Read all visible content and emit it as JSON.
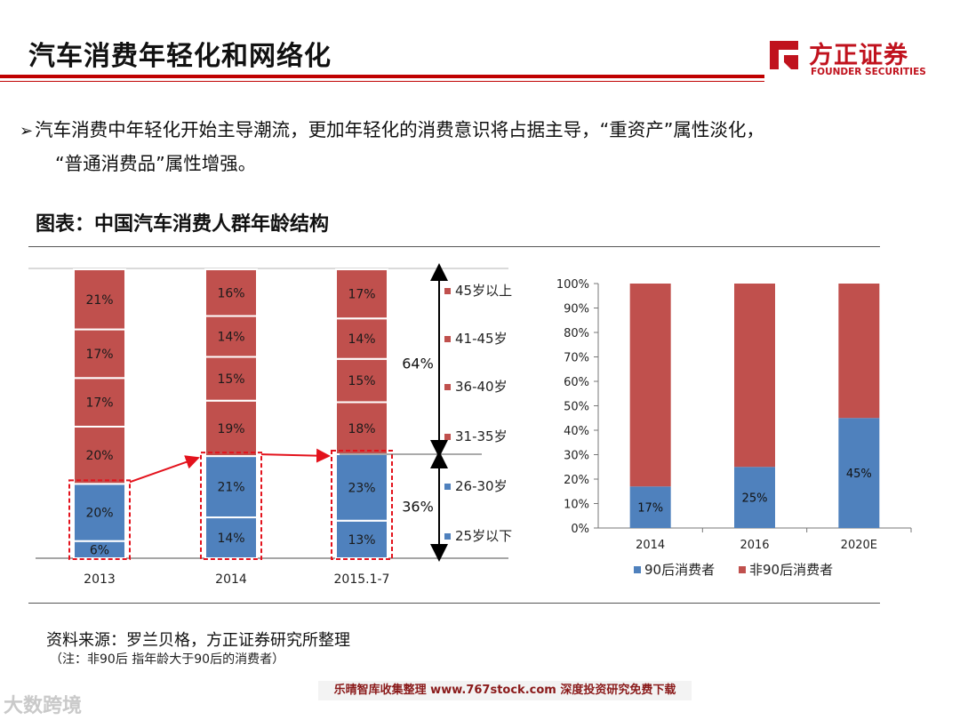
{
  "header": {
    "title": "汽车消费年轻化和网络化",
    "logo_cn": "方正证券",
    "logo_en": "FOUNDER SECURITIES"
  },
  "bullet": {
    "arrow": "➢",
    "line1": "汽车消费中年轻化开始主导潮流，更加年轻化的消费意识将占据主导，“重资产”属性淡化，",
    "line2": "“普通消费品”属性增强。"
  },
  "figure_title": "图表：中国汽车消费人群年龄结构",
  "source": "资料来源：罗兰贝格，方正证券研究所整理",
  "note": "（注：非90后 指年龄大于90后的消费者）",
  "footer": {
    "watermark": "大数跨境",
    "band": "乐晴智库收集整理 www.767stock.com 深度投资研究免费下载"
  },
  "colors": {
    "red": "#c0504d",
    "blue": "#4f81bd",
    "accent": "#e3121c",
    "brand": "#c0121d"
  },
  "chart_data": [
    {
      "type": "bar",
      "stacked": true,
      "title": "中国汽车消费人群年龄结构",
      "categories": [
        "2013",
        "2014",
        "2015.1-7"
      ],
      "series": [
        {
          "name": "25岁以下",
          "color": "#4f81bd",
          "values": [
            6,
            14,
            13
          ]
        },
        {
          "name": "26-30岁",
          "color": "#4f81bd",
          "values": [
            20,
            21,
            23
          ]
        },
        {
          "name": "31-35岁",
          "color": "#c0504d",
          "values": [
            20,
            19,
            18
          ]
        },
        {
          "name": "36-40岁",
          "color": "#c0504d",
          "values": [
            17,
            15,
            15
          ]
        },
        {
          "name": "41-45岁",
          "color": "#c0504d",
          "values": [
            17,
            14,
            14
          ]
        },
        {
          "name": "45岁以上",
          "color": "#c0504d",
          "values": [
            21,
            16,
            17
          ]
        }
      ],
      "legend_order": [
        "45岁以上",
        "41-45岁",
        "36-40岁",
        "31-35岁",
        "26-30岁",
        "25岁以下"
      ],
      "group_annotations": [
        {
          "label": "64%",
          "series": [
            "31-35岁",
            "36-40岁",
            "41-45岁",
            "45岁以上"
          ]
        },
        {
          "label": "36%",
          "series": [
            "25岁以下",
            "26-30岁"
          ]
        }
      ],
      "value_suffix": "%"
    },
    {
      "type": "bar",
      "stacked": true,
      "categories": [
        "2014",
        "2016",
        "2020E"
      ],
      "series": [
        {
          "name": "90后消费者",
          "color": "#4f81bd",
          "values": [
            17,
            25,
            45
          ],
          "labels": [
            "17%",
            "25%",
            "45%"
          ]
        },
        {
          "name": "非90后消费者",
          "color": "#c0504d",
          "values": [
            83,
            75,
            55
          ]
        }
      ],
      "ylim": [
        0,
        100
      ],
      "yticks": [
        "0%",
        "10%",
        "20%",
        "30%",
        "40%",
        "50%",
        "60%",
        "70%",
        "80%",
        "90%",
        "100%"
      ],
      "legend_position": "bottom"
    }
  ]
}
